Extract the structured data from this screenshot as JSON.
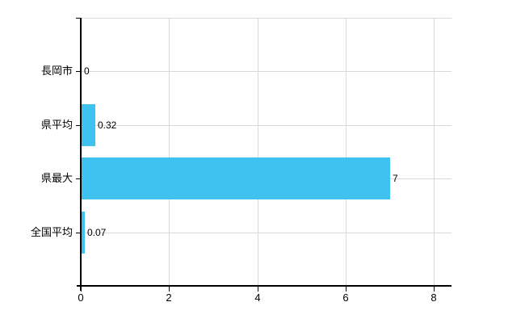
{
  "chart_data": {
    "type": "bar",
    "orientation": "horizontal",
    "title": "",
    "xlabel": "",
    "ylabel": "",
    "categories": [
      "長岡市",
      "県平均",
      "県最大",
      "全国平均"
    ],
    "values": [
      0,
      0.32,
      7,
      0.07
    ],
    "value_labels": [
      "0",
      "0.32",
      "7",
      "0.07"
    ],
    "x_ticks": [
      0,
      2,
      4,
      6,
      8
    ],
    "x_tick_labels": [
      "0",
      "2",
      "4",
      "6",
      "8"
    ],
    "xlim": [
      0,
      8.4
    ],
    "grid": true,
    "legend": false,
    "colors": {
      "bar": "#3fc2ef",
      "grid": "#d9d9d9",
      "axis": "#000000",
      "text": "#000000",
      "background": "#ffffff"
    }
  }
}
